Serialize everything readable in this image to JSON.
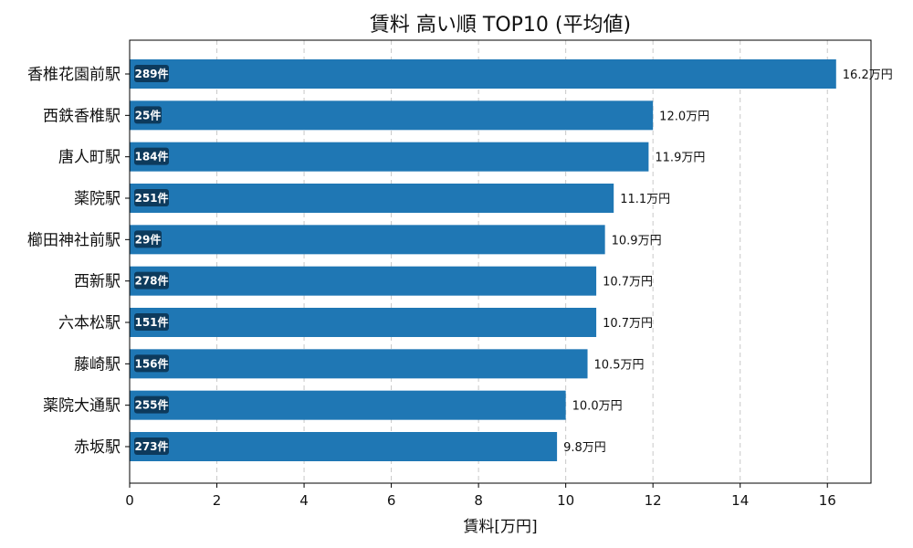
{
  "chart_data": {
    "type": "bar",
    "orientation": "horizontal",
    "title": "賃料 高い順 TOP10 (平均値)",
    "xlabel": "賃料[万円]",
    "ylabel": "",
    "xlim": [
      0,
      17
    ],
    "xticks": [
      "0",
      "2",
      "4",
      "6",
      "8",
      "10",
      "12",
      "14",
      "16"
    ],
    "grid": "x-dashed",
    "bar_color": "#1f77b4",
    "badge_color": "#0d3a5c",
    "categories": [
      "香椎花園前駅",
      "西鉄香椎駅",
      "唐人町駅",
      "薬院駅",
      "櫛田神社前駅",
      "西新駅",
      "六本松駅",
      "藤崎駅",
      "薬院大通駅",
      "赤坂駅"
    ],
    "values": [
      16.2,
      12.0,
      11.9,
      11.1,
      10.9,
      10.7,
      10.7,
      10.5,
      10.0,
      9.8
    ],
    "value_labels": [
      "16.2万円",
      "12.0万円",
      "11.9万円",
      "11.1万円",
      "10.9万円",
      "10.7万円",
      "10.7万円",
      "10.5万円",
      "10.0万円",
      "9.8万円"
    ],
    "counts": [
      "289件",
      "25件",
      "184件",
      "251件",
      "29件",
      "278件",
      "151件",
      "156件",
      "255件",
      "273件"
    ]
  }
}
